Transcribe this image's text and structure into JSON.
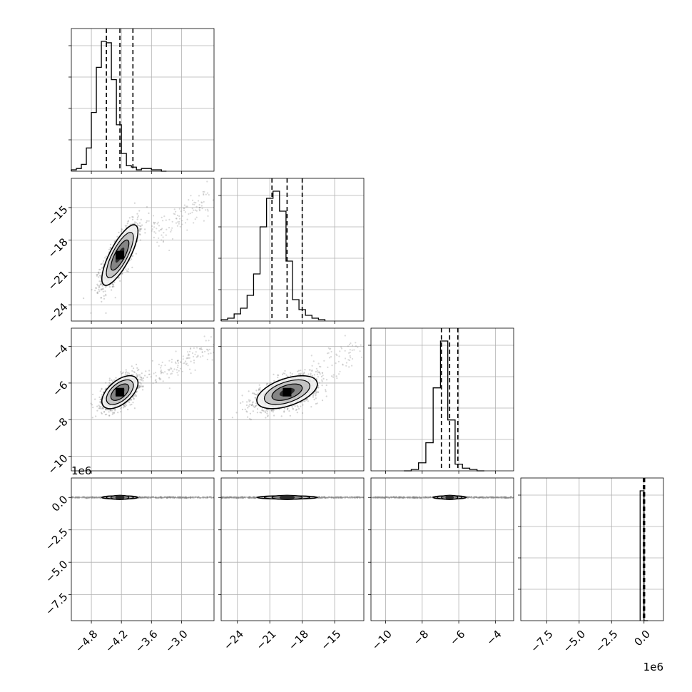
{
  "chart_data": {
    "type": "corner",
    "title": "",
    "parameters": [
      {
        "xlim": [
          -5.2,
          -2.35
        ],
        "ticks": [
          -4.8,
          -4.2,
          -3.6,
          -3.0
        ],
        "tick_labels": [
          "−4.8",
          "−4.2",
          "−3.6",
          "−3.0"
        ],
        "quantiles": [
          -4.5,
          -4.23,
          -3.97
        ]
      },
      {
        "xlim": [
          -25.5,
          -12.3
        ],
        "ticks": [
          -24,
          -21,
          -18,
          -15
        ],
        "tick_labels": [
          "−24",
          "−21",
          "−18",
          "−15"
        ],
        "quantiles": [
          -20.8,
          -19.4,
          -18.0
        ]
      },
      {
        "xlim": [
          -10.8,
          -3.0
        ],
        "ticks": [
          -10,
          -8,
          -6,
          -4
        ],
        "tick_labels": [
          "−10",
          "−8",
          "−6",
          "−4"
        ],
        "quantiles": [
          -6.95,
          -6.5,
          -6.05
        ]
      },
      {
        "xlim": [
          -9.5,
          1.5
        ],
        "ticks": [
          -7.5,
          -5.0,
          -2.5,
          0.0
        ],
        "tick_labels": [
          "−7.5",
          "−5.0",
          "−2.5",
          "0.0"
        ],
        "quantiles": [
          -0.05,
          0.0,
          0.05
        ]
      }
    ],
    "row_ylims": [
      null,
      [
        -25.5,
        -12.3
      ],
      [
        -10.8,
        -3.0
      ],
      [
        -9.5,
        1.5
      ]
    ],
    "row_yticks": [
      null,
      [
        -24,
        -21,
        -18,
        -15
      ],
      [
        -10,
        -8,
        -6,
        -4
      ],
      [
        -7.5,
        -5.0,
        -2.5,
        0.0
      ]
    ],
    "row_ytick_labels": [
      null,
      [
        "−24",
        "−21",
        "−18",
        "−15"
      ],
      [
        "−10",
        "−8",
        "−6",
        "−4"
      ],
      [
        "−7.5",
        "−5.0",
        "−2.5",
        "0.0"
      ]
    ],
    "offset_text": "1e6",
    "histograms": [
      {
        "param": 0,
        "edges_start": -5.2,
        "bin_width": 0.1,
        "counts": [
          1,
          2,
          5,
          17,
          43,
          76,
          95,
          94,
          67,
          34,
          13,
          4,
          3,
          1,
          2,
          2,
          1,
          1,
          0
        ]
      },
      {
        "param": 1,
        "edges_start": -25.5,
        "bin_width": 0.6,
        "counts": [
          1,
          2,
          5,
          9,
          18,
          33,
          66,
          86,
          91,
          77,
          42,
          15,
          8,
          4,
          2,
          1
        ]
      },
      {
        "param": 2,
        "edges_start": -9.0,
        "bin_width": 0.4,
        "counts": [
          0,
          1,
          6,
          21,
          62,
          97,
          38,
          5,
          2,
          1,
          0
        ]
      },
      {
        "param": 3,
        "edges_start": -0.3,
        "bin_width": 0.3,
        "counts": [
          100,
          0
        ]
      }
    ],
    "scatter_panels": [
      {
        "row": 1,
        "col": 0,
        "center": [
          -4.23,
          -19.4
        ],
        "sigma": [
          0.18,
          1.4
        ],
        "rho": 0.78
      },
      {
        "row": 2,
        "col": 0,
        "center": [
          -4.23,
          -6.5
        ],
        "sigma": [
          0.18,
          0.45
        ],
        "rho": 0.55
      },
      {
        "row": 2,
        "col": 1,
        "center": [
          -19.4,
          -6.5
        ],
        "sigma": [
          1.4,
          0.45
        ],
        "rho": 0.5
      },
      {
        "row": 3,
        "col": 0,
        "center": [
          -4.23,
          0.0
        ],
        "sigma": [
          0.18,
          0.02
        ],
        "rho": 0
      },
      {
        "row": 3,
        "col": 1,
        "center": [
          -19.4,
          0.0
        ],
        "sigma": [
          1.4,
          0.02
        ],
        "rho": 0
      },
      {
        "row": 3,
        "col": 2,
        "center": [
          -6.5,
          0.0
        ],
        "sigma": [
          0.45,
          0.02
        ],
        "rho": 0
      }
    ],
    "grid": true,
    "colors": {
      "line": "#000000",
      "points": "#808080",
      "grid": "#b0b0b0"
    }
  }
}
